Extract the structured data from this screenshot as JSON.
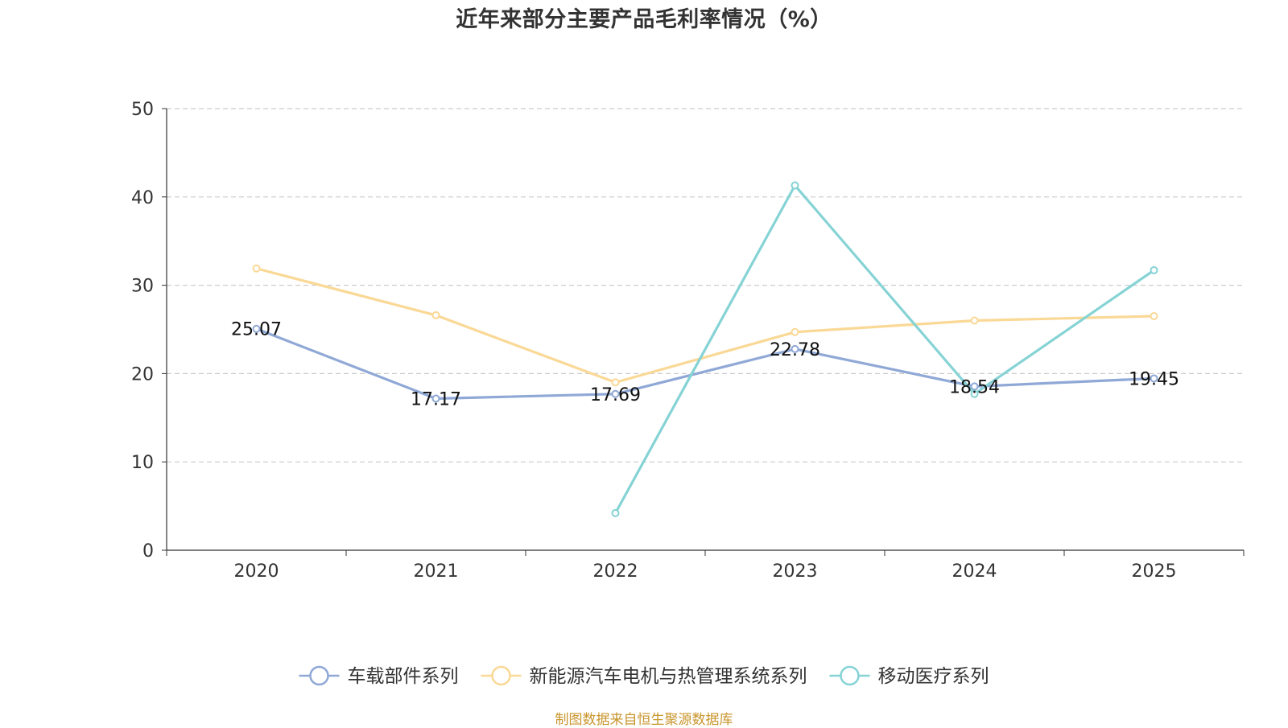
{
  "chart_data": {
    "type": "line",
    "title": "近年来部分主要产品毛利率情况（%）",
    "categories": [
      "2020",
      "2021",
      "2022",
      "2023",
      "2024",
      "2025"
    ],
    "ylim": [
      0,
      50
    ],
    "yticks": [
      0,
      10,
      20,
      30,
      40,
      50
    ],
    "grid": true,
    "legend_position": "bottom",
    "series": [
      {
        "name": "车载部件系列",
        "color": "#8fa8d6",
        "values": [
          25.07,
          17.17,
          17.69,
          22.78,
          18.54,
          19.45
        ],
        "labels": [
          "25.07",
          "17.17",
          "17.69",
          "22.78",
          "18.54",
          "19.45"
        ]
      },
      {
        "name": "新能源汽车电机与热管理系统系列",
        "color": "#fad896",
        "values": [
          31.9,
          26.6,
          19.0,
          24.7,
          26.0,
          26.5
        ],
        "labels": []
      },
      {
        "name": "移动医疗系列",
        "color": "#86d3d5",
        "values": [
          null,
          null,
          4.2,
          41.3,
          17.7,
          31.7
        ],
        "labels": []
      }
    ]
  },
  "source_note": "制图数据来自恒生聚源数据库"
}
